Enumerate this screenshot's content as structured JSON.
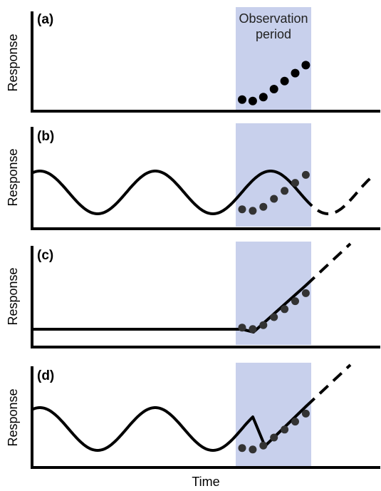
{
  "figure": {
    "observation_label_line1": "Observation",
    "observation_label_line2": "period",
    "x_axis_label": "Time",
    "colors": {
      "observation_band": "#c8d0ec",
      "line": "#000000",
      "dots": "#000000"
    },
    "panels": [
      {
        "label": "(a)",
        "ylabel": "Response",
        "model": "none",
        "show_observation_label": true
      },
      {
        "label": "(b)",
        "ylabel": "Response",
        "model": "periodic",
        "prediction": "continues oscillation (dashed)"
      },
      {
        "label": "(c)",
        "ylabel": "Response",
        "model": "flat-then-linear",
        "prediction": "continues linear increase (dashed)"
      },
      {
        "label": "(d)",
        "ylabel": "Response",
        "model": "periodic-then-linear",
        "prediction": "continues linear increase (dashed)"
      }
    ]
  },
  "chart_data": {
    "type": "scatter",
    "observations": {
      "x": [
        1,
        2,
        3,
        4,
        5,
        6,
        7
      ],
      "y": [
        0.95,
        0.8,
        1.2,
        2.0,
        2.8,
        3.6,
        4.4
      ]
    },
    "x_domain": [
      0,
      20
    ],
    "observation_window": [
      0.5,
      8.0
    ]
  }
}
